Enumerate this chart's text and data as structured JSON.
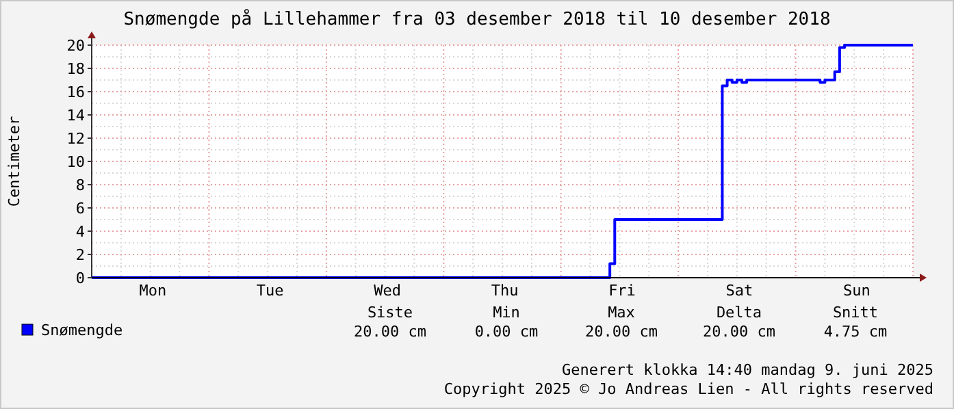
{
  "chart_data": {
    "type": "step",
    "title": "Snømengde på Lillehammer fra 03 desember 2018 til 10 desember 2018",
    "ylabel": "Centimeter",
    "categories": [
      null,
      null,
      null,
      null,
      null,
      null,
      null,
      null,
      null,
      null,
      null,
      null,
      "Mon",
      null,
      null,
      null,
      null,
      null,
      null,
      null,
      null,
      null,
      null,
      null,
      null,
      null,
      null,
      null,
      null,
      null,
      null,
      null,
      null,
      null,
      null,
      null,
      "Tue",
      null,
      null,
      null,
      null,
      null,
      null,
      null,
      null,
      null,
      null,
      null,
      null,
      null,
      null,
      null,
      null,
      null,
      null,
      null,
      null,
      null,
      null,
      null,
      "Wed",
      null,
      null,
      null,
      null,
      null,
      null,
      null,
      null,
      null,
      null,
      null,
      null,
      null,
      null,
      null,
      null,
      null,
      null,
      null,
      null,
      null,
      null,
      null,
      "Thu",
      null,
      null,
      null,
      null,
      null,
      null,
      null,
      null,
      null,
      null,
      null,
      null,
      null,
      null,
      null,
      null,
      null,
      null,
      null,
      null,
      null,
      null,
      null,
      "Fri",
      null,
      null,
      null,
      null,
      null,
      null,
      null,
      null,
      null,
      null,
      null,
      null,
      null,
      null,
      null,
      null,
      null,
      null,
      null,
      null,
      null,
      null,
      null,
      "Sat",
      null,
      null,
      null,
      null,
      null,
      null,
      null,
      null,
      null,
      null,
      null,
      null,
      null,
      null,
      null,
      null,
      null,
      null,
      null,
      null,
      null,
      null,
      null,
      "Sun",
      null,
      null,
      null,
      null,
      null,
      null,
      null,
      null,
      null,
      null,
      null
    ],
    "ylim": [
      0,
      20
    ],
    "yticks": [
      0,
      2,
      4,
      6,
      8,
      10,
      12,
      14,
      16,
      18,
      20
    ],
    "grid": true,
    "legend": "bottom left",
    "series": [
      {
        "name": "Snømengde",
        "color": "#0000ff",
        "values": [
          0,
          0,
          0,
          0,
          0,
          0,
          0,
          0,
          0,
          0,
          0,
          0,
          0,
          0,
          0,
          0,
          0,
          0,
          0,
          0,
          0,
          0,
          0,
          0,
          0,
          0,
          0,
          0,
          0,
          0,
          0,
          0,
          0,
          0,
          0,
          0,
          0,
          0,
          0,
          0,
          0,
          0,
          0,
          0,
          0,
          0,
          0,
          0,
          0,
          0,
          0,
          0,
          0,
          0,
          0,
          0,
          0,
          0,
          0,
          0,
          0,
          0,
          0,
          0,
          0,
          0,
          0,
          0,
          0,
          0,
          0,
          0,
          0,
          0,
          0,
          0,
          0,
          0,
          0,
          0,
          0,
          0,
          0,
          0,
          0,
          0,
          0,
          0,
          0,
          0,
          0,
          0,
          0,
          0,
          0,
          0,
          0,
          0,
          0,
          0,
          0,
          0,
          0,
          0,
          0,
          0,
          1.2,
          5,
          5,
          5,
          5,
          5,
          5,
          5,
          5,
          5,
          5,
          5,
          5,
          5,
          5,
          5,
          5,
          5,
          5,
          5,
          5,
          5,
          5,
          16.5,
          17,
          16.8,
          17,
          16.8,
          17,
          17,
          17,
          17,
          17,
          17,
          17,
          17,
          17,
          17,
          17,
          17,
          17,
          17,
          17,
          16.8,
          17,
          17,
          17.7,
          19.8,
          20,
          20,
          20,
          20,
          20,
          20,
          20,
          20,
          20,
          20,
          20,
          20,
          20,
          20
        ]
      }
    ],
    "annotations": [
      "Siste",
      "Min",
      "Max",
      "Delta",
      "Snitt",
      "20.00 cm",
      "0.00 cm",
      "20.00 cm",
      "20.00 cm",
      "4.75 cm",
      "Generert klokka 14:40 mandag 9. juni 2025",
      "Copyright 2025 © Jo Andreas Lien - All rights reserved"
    ]
  }
}
